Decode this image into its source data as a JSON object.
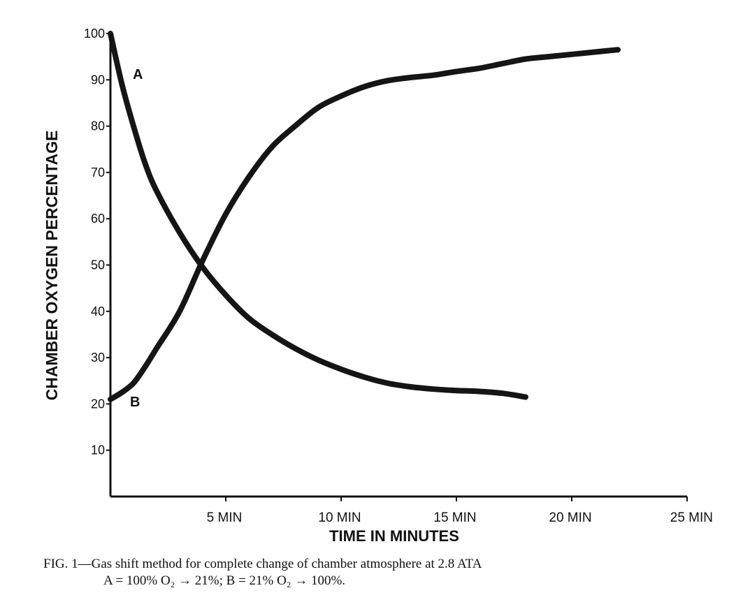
{
  "chart_data": {
    "type": "line",
    "title": "",
    "xlabel": "TIME IN MINUTES",
    "ylabel": "CHAMBER OXYGEN PERCENTAGE",
    "xlim": [
      0,
      25
    ],
    "ylim": [
      0,
      100
    ],
    "x_ticks": [
      {
        "value": 5,
        "label": "5 MIN"
      },
      {
        "value": 10,
        "label": "10 MIN"
      },
      {
        "value": 15,
        "label": "15 MIN"
      },
      {
        "value": 20,
        "label": "20 MIN"
      },
      {
        "value": 25,
        "label": "25 MIN"
      }
    ],
    "y_ticks": [
      {
        "value": 10,
        "label": "10"
      },
      {
        "value": 20,
        "label": "20"
      },
      {
        "value": 30,
        "label": "30"
      },
      {
        "value": 40,
        "label": "40"
      },
      {
        "value": 50,
        "label": "50"
      },
      {
        "value": 60,
        "label": "60"
      },
      {
        "value": 70,
        "label": "70"
      },
      {
        "value": 80,
        "label": "80"
      },
      {
        "value": 90,
        "label": "90"
      },
      {
        "value": 100,
        "label": "100"
      }
    ],
    "grid": false,
    "series": [
      {
        "name": "A",
        "x": [
          0,
          0.5,
          1,
          1.5,
          2,
          3,
          4,
          5,
          6,
          7,
          8,
          9,
          10,
          11,
          12,
          13,
          14,
          15,
          16,
          17,
          18
        ],
        "y": [
          100,
          89,
          80,
          72,
          66,
          57,
          49.5,
          43.5,
          38.5,
          35,
          32,
          29.5,
          27.5,
          25.8,
          24.5,
          23.7,
          23.2,
          22.9,
          22.7,
          22.3,
          21.5
        ]
      },
      {
        "name": "B",
        "x": [
          0,
          0.5,
          1,
          1.5,
          2,
          3,
          4,
          5,
          6,
          7,
          8,
          9,
          10,
          11,
          12,
          13,
          14,
          15,
          16,
          17,
          18,
          19,
          20,
          21,
          22
        ],
        "y": [
          21,
          22.5,
          24.5,
          28,
          32,
          40,
          51,
          61,
          69,
          75.5,
          80,
          84,
          86.5,
          88.5,
          89.8,
          90.5,
          91,
          91.8,
          92.5,
          93.5,
          94.5,
          95,
          95.5,
          96,
          96.5
        ]
      }
    ]
  },
  "caption": {
    "line1": "FIG. 1—Gas shift method for complete change of chamber atmosphere at 2.8 ATA",
    "line2": "A = 100% O₂ → 21%; B = 21% O₂ → 100%."
  }
}
